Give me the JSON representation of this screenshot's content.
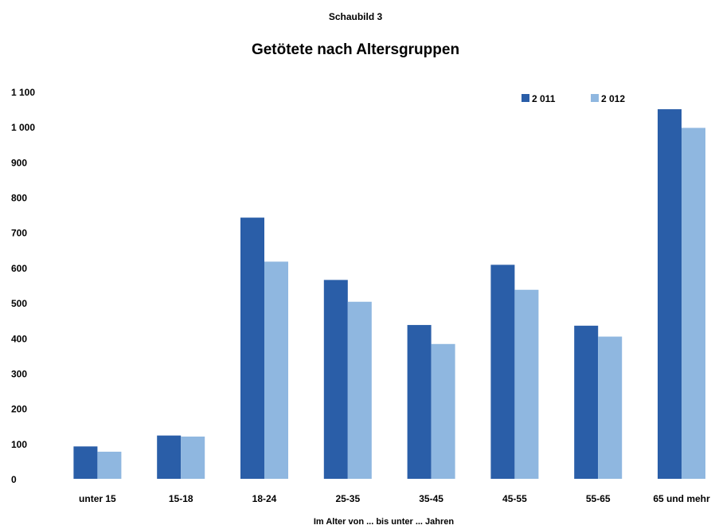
{
  "kicker": "Schaubild 3",
  "colors": {
    "series_2011": "#2a5ea8",
    "series_2012": "#8fb7e0"
  },
  "chart_data": {
    "type": "bar",
    "title": "Getötete nach Altersgruppen",
    "xlabel": "Im Alter von ... bis unter ... Jahren",
    "ylabel": "",
    "ylim": [
      0,
      1100
    ],
    "yticks": [
      0,
      100,
      200,
      300,
      400,
      500,
      600,
      700,
      800,
      900,
      1000,
      1100
    ],
    "ytick_labels": [
      "0",
      "100",
      "200",
      "300",
      "400",
      "500",
      "600",
      "700",
      "800",
      "900",
      "1 000",
      "1 100"
    ],
    "grid": false,
    "legend_position": "top-right",
    "categories": [
      "unter 15",
      "15-18",
      "18-24",
      "25-35",
      "35-45",
      "45-55",
      "55-65",
      "65 und mehr"
    ],
    "series": [
      {
        "name": "2 011",
        "values": [
          92,
          123,
          742,
          565,
          437,
          608,
          435,
          1050
        ]
      },
      {
        "name": "2 012",
        "values": [
          77,
          120,
          617,
          503,
          383,
          537,
          404,
          997
        ]
      }
    ]
  }
}
